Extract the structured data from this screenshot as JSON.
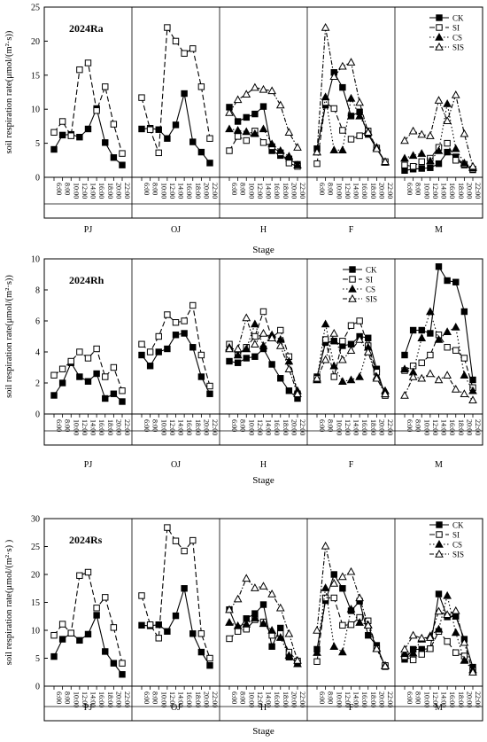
{
  "figure": {
    "stage_names": [
      "PJ",
      "OJ",
      "H",
      "F",
      "M"
    ],
    "time_ticks": [
      "6:00",
      "8:00",
      "10:00",
      "12:00",
      "14:00",
      "16:00",
      "18:00",
      "20:00",
      "22:00"
    ],
    "xlabel": "Stage",
    "ylabel": "soil respiration rate(μmol/(m²·s))",
    "styles": {
      "CK": {
        "color": "#000000",
        "marker": "square-filled",
        "dash": ""
      },
      "SI": {
        "color": "#000000",
        "marker": "square-open",
        "dash": "6,3"
      },
      "CS": {
        "color": "#000000",
        "marker": "triangle-filled",
        "dash": "1.5,2.5"
      },
      "SIS": {
        "color": "#000000",
        "marker": "triangle-open",
        "dash": "5,2,1.5,2"
      }
    }
  },
  "chart_data": [
    {
      "type": "line",
      "title": "2024Ra",
      "xlabel": "Stage",
      "ylabel": "soil respiration rate(μmol/(m²·s))",
      "ylim": [
        0,
        25
      ],
      "yticks": [
        0,
        5,
        10,
        15,
        20,
        25
      ],
      "legend": [
        "CK",
        "SI",
        "CS",
        "SIS"
      ],
      "legend_position": "top-right",
      "stages": [
        {
          "name": "PJ",
          "series": {
            "CK": [
              4.1,
              6.2,
              6.3,
              5.9,
              7.1,
              10.1,
              5.1,
              2.9,
              1.8
            ],
            "SI": [
              6.6,
              8.2,
              6.1,
              15.8,
              16.8,
              9.8,
              13.3,
              7.8,
              3.5
            ]
          }
        },
        {
          "name": "OJ",
          "series": {
            "CK": [
              7.1,
              7.2,
              7.0,
              5.7,
              7.7,
              12.3,
              5.2,
              3.7,
              2.1
            ],
            "SI": [
              11.7,
              7.0,
              3.6,
              22.0,
              20.0,
              18.2,
              18.9,
              13.3,
              5.7
            ]
          }
        },
        {
          "name": "H",
          "series": {
            "CK": [
              10.3,
              8.2,
              8.8,
              9.3,
              10.4,
              3.9,
              3.2,
              2.7,
              1.9
            ],
            "SI": [
              3.9,
              6.0,
              5.4,
              6.8,
              5.1,
              4.5,
              3.6,
              2.1,
              1.6
            ],
            "CS": [
              7.1,
              6.9,
              6.7,
              6.4,
              7.1,
              4.9,
              3.9,
              3.1,
              1.8
            ],
            "SIS": [
              9.5,
              11.4,
              12.2,
              13.2,
              12.9,
              12.7,
              10.6,
              6.6,
              4.4
            ]
          }
        },
        {
          "name": "F",
          "series": {
            "CK": [
              4.2,
              10.6,
              15.4,
              13.2,
              9.0,
              9.6,
              6.3,
              4.2,
              2.2
            ],
            "SI": [
              2.0,
              11.0,
              10.1,
              6.9,
              5.6,
              6.1,
              6.8,
              4.3,
              2.3
            ],
            "CS": [
              3.7,
              11.8,
              4.0,
              4.0,
              11.6,
              9.0,
              6.7,
              4.4,
              2.2
            ],
            "SIS": [
              3.7,
              22.0,
              14.8,
              16.3,
              16.9,
              11.0,
              6.6,
              4.2,
              2.3
            ]
          }
        },
        {
          "name": "M",
          "series": {
            "CK": [
              1.0,
              1.2,
              1.3,
              1.4,
              2.0,
              3.7,
              3.0,
              1.8,
              1.1
            ],
            "SI": [
              1.8,
              1.6,
              2.3,
              2.8,
              4.4,
              5.0,
              2.5,
              1.9,
              1.2
            ],
            "CS": [
              2.8,
              3.2,
              3.5,
              2.4,
              3.9,
              10.8,
              4.2,
              2.1,
              1.4
            ],
            "SIS": [
              5.4,
              6.8,
              6.3,
              6.1,
              11.3,
              8.3,
              12.1,
              6.4,
              1.6
            ]
          }
        }
      ]
    },
    {
      "type": "line",
      "title": "2024Rh",
      "xlabel": "Stage",
      "ylabel": "soil respiration rate(μmol/(m²·s))",
      "ylim": [
        0,
        10
      ],
      "yticks": [
        0,
        2,
        4,
        6,
        8,
        10
      ],
      "legend": [
        "CK",
        "SI",
        "CS",
        "SIS"
      ],
      "legend_position": "top-right",
      "stages": [
        {
          "name": "PJ",
          "series": {
            "CK": [
              1.2,
              2.0,
              3.3,
              2.4,
              2.1,
              2.6,
              1.0,
              1.3,
              0.8
            ],
            "SI": [
              2.5,
              2.9,
              3.4,
              4.0,
              3.6,
              4.2,
              2.4,
              3.0,
              1.5
            ]
          }
        },
        {
          "name": "OJ",
          "series": {
            "CK": [
              3.8,
              3.1,
              4.0,
              4.2,
              5.1,
              5.2,
              4.3,
              2.4,
              1.3
            ],
            "SI": [
              4.5,
              4.0,
              5.0,
              6.4,
              5.9,
              6.0,
              7.0,
              3.8,
              1.8
            ]
          }
        },
        {
          "name": "H",
          "series": {
            "CK": [
              3.4,
              3.3,
              3.6,
              3.7,
              4.2,
              3.2,
              2.3,
              1.5,
              1.0
            ],
            "SI": [
              4.5,
              3.8,
              4.3,
              5.0,
              6.6,
              4.9,
              5.4,
              3.7,
              1.3
            ],
            "CS": [
              4.3,
              3.8,
              4.2,
              5.8,
              4.4,
              5.1,
              4.8,
              3.4,
              1.5
            ],
            "SIS": [
              4.2,
              4.2,
              6.2,
              4.5,
              5.2,
              4.9,
              4.4,
              2.9,
              1.3
            ]
          }
        },
        {
          "name": "F",
          "series": {
            "CK": [
              2.4,
              4.6,
              4.7,
              4.4,
              4.5,
              5.0,
              4.9,
              2.9,
              1.2
            ],
            "SI": [
              2.3,
              4.8,
              2.4,
              4.7,
              5.7,
              6.0,
              4.4,
              2.7,
              1.2
            ],
            "CS": [
              2.2,
              5.8,
              3.1,
              2.1,
              2.2,
              2.4,
              4.3,
              2.4,
              1.5
            ],
            "SIS": [
              2.3,
              3.5,
              5.2,
              3.5,
              4.1,
              4.8,
              4.0,
              2.3,
              1.3
            ]
          }
        },
        {
          "name": "M",
          "series": {
            "CK": [
              3.8,
              5.4,
              5.4,
              5.2,
              9.5,
              8.6,
              8.5,
              6.6,
              2.2
            ],
            "SI": [
              2.8,
              3.1,
              3.3,
              3.8,
              5.1,
              4.3,
              4.1,
              3.6,
              1.7
            ],
            "CS": [
              2.9,
              2.7,
              4.9,
              6.6,
              4.8,
              5.3,
              5.6,
              2.5,
              1.5
            ],
            "SIS": [
              1.2,
              2.4,
              2.3,
              2.6,
              2.2,
              2.5,
              1.6,
              1.3,
              0.9
            ]
          }
        }
      ]
    },
    {
      "type": "line",
      "title": "2024Rs",
      "xlabel": "Stage",
      "ylabel": "soil respiration rate(μmol/(m²·s) )",
      "ylim": [
        0,
        30
      ],
      "yticks": [
        0,
        5,
        10,
        15,
        20,
        25,
        30
      ],
      "legend": [
        "CK",
        "SI",
        "CS",
        "SIS"
      ],
      "legend_position": "top-right",
      "stages": [
        {
          "name": "PJ",
          "series": {
            "CK": [
              5.3,
              8.4,
              9.5,
              8.2,
              9.3,
              12.7,
              6.2,
              4.1,
              2.1
            ],
            "SI": [
              9.1,
              11.1,
              9.5,
              19.8,
              20.4,
              14.0,
              15.9,
              10.5,
              4.1
            ]
          }
        },
        {
          "name": "OJ",
          "series": {
            "CK": [
              10.9,
              10.8,
              11.0,
              9.8,
              12.6,
              17.5,
              9.4,
              6.1,
              3.7
            ],
            "SI": [
              16.2,
              11.0,
              8.6,
              28.4,
              26.0,
              24.2,
              26.1,
              9.4,
              5.0
            ]
          }
        },
        {
          "name": "H",
          "series": {
            "CK": [
              13.7,
              10.0,
              12.1,
              13.0,
              14.6,
              7.1,
              10.4,
              5.2,
              4.2
            ],
            "SI": [
              8.5,
              9.8,
              10.2,
              11.9,
              11.5,
              9.1,
              9.4,
              6.1,
              4.5
            ],
            "CS": [
              11.4,
              10.8,
              11.1,
              12.2,
              11.2,
              10.0,
              8.7,
              5.5,
              4.0
            ],
            "SIS": [
              13.7,
              15.6,
              19.3,
              17.6,
              17.9,
              16.5,
              14.0,
              9.4,
              4.6
            ]
          }
        },
        {
          "name": "F",
          "series": {
            "CK": [
              6.6,
              15.3,
              20.0,
              17.5,
              13.5,
              15.2,
              9.1,
              7.3,
              3.5
            ],
            "SI": [
              4.4,
              15.8,
              15.8,
              10.9,
              11.0,
              12.3,
              11.7,
              6.7,
              3.7
            ],
            "CS": [
              6.0,
              17.6,
              7.1,
              6.1,
              13.8,
              11.4,
              11.0,
              6.8,
              3.7
            ],
            "SIS": [
              10.0,
              25.1,
              18.4,
              19.6,
              20.5,
              15.8,
              10.9,
              6.7,
              3.6
            ]
          }
        },
        {
          "name": "M",
          "series": {
            "CK": [
              4.8,
              6.6,
              6.6,
              6.7,
              16.5,
              12.4,
              12.5,
              8.4,
              3.4
            ],
            "SI": [
              5.3,
              4.7,
              5.7,
              6.7,
              9.8,
              8.0,
              6.0,
              5.4,
              2.8
            ],
            "CS": [
              5.8,
              5.9,
              8.4,
              9.0,
              10.2,
              16.2,
              9.6,
              4.6,
              2.9
            ],
            "SIS": [
              6.6,
              9.1,
              8.6,
              8.7,
              13.4,
              12.8,
              13.5,
              7.8,
              2.5
            ]
          }
        }
      ]
    }
  ]
}
